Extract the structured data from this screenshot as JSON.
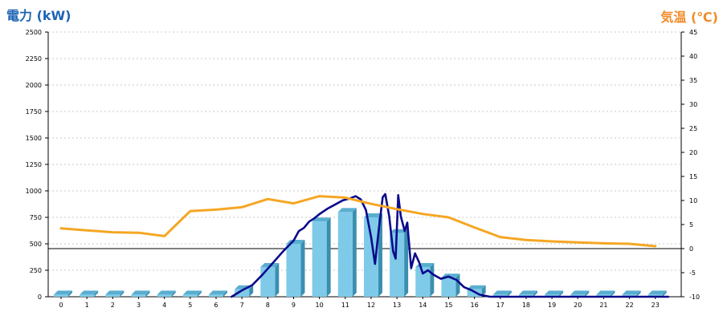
{
  "chart_data": {
    "type": "bar",
    "title_left": "電力 (kW)",
    "title_right": "気温 (℃)",
    "x": [
      0,
      1,
      2,
      3,
      4,
      5,
      6,
      7,
      8,
      9,
      10,
      11,
      12,
      13,
      14,
      15,
      16,
      17,
      18,
      19,
      20,
      21,
      22,
      23
    ],
    "y_left": {
      "min": 0,
      "max": 2500,
      "ticks": [
        0,
        250,
        500,
        750,
        1000,
        1250,
        1500,
        1750,
        2000,
        2250,
        2500
      ]
    },
    "y_right": {
      "min": -10,
      "max": 45,
      "ticks": [
        -10,
        -5,
        0,
        5,
        10,
        15,
        20,
        25,
        30,
        35,
        40,
        45
      ]
    },
    "grid": true,
    "series": [
      {
        "kind": "bar",
        "axis": "left",
        "values": [
          20,
          20,
          20,
          20,
          20,
          20,
          20,
          70,
          280,
          500,
          710,
          800,
          750,
          600,
          280,
          180,
          70,
          20,
          20,
          20,
          20,
          20,
          20,
          20
        ],
        "color": "#7ecae8"
      },
      {
        "kind": "line",
        "axis": "left",
        "color": "#0a0a8c",
        "points": [
          [
            6.6,
            0
          ],
          [
            7,
            60
          ],
          [
            7.4,
            110
          ],
          [
            7.8,
            210
          ],
          [
            8.2,
            320
          ],
          [
            8.6,
            430
          ],
          [
            9,
            530
          ],
          [
            9.2,
            620
          ],
          [
            9.4,
            650
          ],
          [
            9.6,
            710
          ],
          [
            9.8,
            740
          ],
          [
            10,
            780
          ],
          [
            10.3,
            830
          ],
          [
            10.6,
            870
          ],
          [
            10.9,
            910
          ],
          [
            11.2,
            930
          ],
          [
            11.4,
            950
          ],
          [
            11.6,
            920
          ],
          [
            11.8,
            820
          ],
          [
            12,
            560
          ],
          [
            12.15,
            310
          ],
          [
            12.3,
            640
          ],
          [
            12.45,
            940
          ],
          [
            12.55,
            970
          ],
          [
            12.7,
            760
          ],
          [
            12.85,
            430
          ],
          [
            12.95,
            360
          ],
          [
            13.05,
            960
          ],
          [
            13.15,
            760
          ],
          [
            13.3,
            620
          ],
          [
            13.4,
            700
          ],
          [
            13.55,
            270
          ],
          [
            13.7,
            410
          ],
          [
            13.85,
            330
          ],
          [
            14,
            220
          ],
          [
            14.2,
            250
          ],
          [
            14.4,
            210
          ],
          [
            14.7,
            170
          ],
          [
            15,
            190
          ],
          [
            15.3,
            160
          ],
          [
            15.6,
            90
          ],
          [
            15.9,
            60
          ],
          [
            16.2,
            20
          ],
          [
            16.6,
            0
          ],
          [
            23.5,
            0
          ]
        ]
      },
      {
        "kind": "line",
        "axis": "right",
        "color": "#f5a623",
        "points": [
          [
            0,
            4.2
          ],
          [
            1,
            3.8
          ],
          [
            2,
            3.4
          ],
          [
            3,
            3.3
          ],
          [
            4,
            2.6
          ],
          [
            5,
            7.8
          ],
          [
            6,
            8.1
          ],
          [
            7,
            8.6
          ],
          [
            8,
            10.3
          ],
          [
            9,
            9.4
          ],
          [
            10,
            10.9
          ],
          [
            11,
            10.6
          ],
          [
            12,
            9.3
          ],
          [
            13,
            8.2
          ],
          [
            14,
            7.2
          ],
          [
            15,
            6.5
          ],
          [
            16,
            4.4
          ],
          [
            17,
            2.4
          ],
          [
            18,
            1.8
          ],
          [
            19,
            1.5
          ],
          [
            20,
            1.3
          ],
          [
            21,
            1.1
          ],
          [
            22,
            1.0
          ],
          [
            23,
            0.5
          ]
        ]
      }
    ]
  }
}
